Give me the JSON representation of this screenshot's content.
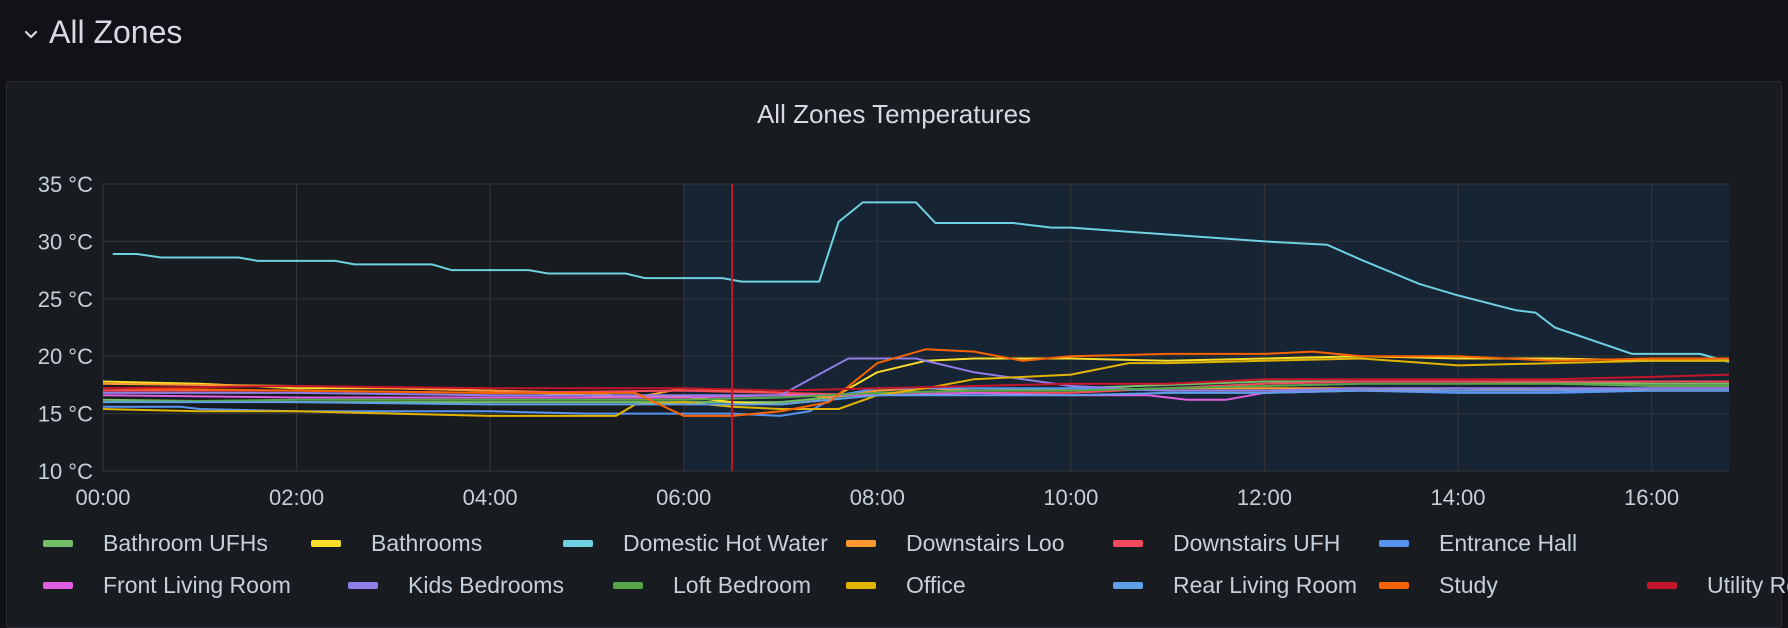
{
  "row": {
    "title": "All Zones"
  },
  "panel": {
    "title": "All Zones Temperatures"
  },
  "colors": {
    "background": "#111217",
    "panel": "#181b1f",
    "grid": "#2f3238",
    "highlight_region": "#172433",
    "now_marker": "#c4162a"
  },
  "chart_data": {
    "type": "line",
    "title": "All Zones Temperatures",
    "xlabel": "",
    "ylabel": "",
    "x_ticks": [
      "00:00",
      "02:00",
      "04:00",
      "06:00",
      "08:00",
      "10:00",
      "12:00",
      "14:00",
      "16:00"
    ],
    "y_ticks": [
      "10 °C",
      "15 °C",
      "20 °C",
      "25 °C",
      "30 °C",
      "35 °C"
    ],
    "xlim_hours": [
      0,
      16.8
    ],
    "ylim": [
      10,
      35
    ],
    "grid": true,
    "legend_position": "bottom",
    "highlight_region_hours": [
      6.0,
      16.8
    ],
    "marker_hour": 6.5,
    "series": [
      {
        "name": "Bathroom UFHs",
        "color": "#73bf69",
        "x": [
          0,
          2,
          4,
          6,
          7,
          8,
          9,
          10,
          12,
          14,
          16,
          16.8
        ],
        "y": [
          16.2,
          16.0,
          16.0,
          16.0,
          16.0,
          16.8,
          17.0,
          17.2,
          17.8,
          17.8,
          17.6,
          17.6
        ]
      },
      {
        "name": "Bathrooms",
        "color": "#fade2a",
        "x": [
          0,
          1,
          2,
          3,
          4,
          5,
          5.6,
          6,
          6.5,
          7,
          7.5,
          8,
          8.5,
          9,
          10,
          11,
          12,
          13,
          14,
          15,
          16,
          16.8
        ],
        "y": [
          17.8,
          17.6,
          17.2,
          17.2,
          17.0,
          16.6,
          16.5,
          16.5,
          16.0,
          15.8,
          16.2,
          18.6,
          19.6,
          19.8,
          19.8,
          19.6,
          19.8,
          20.0,
          19.8,
          19.8,
          19.6,
          19.6
        ]
      },
      {
        "name": "Domestic Hot Water",
        "color": "#6ed0e0",
        "x": [
          0.1,
          0.35,
          0.6,
          1.4,
          1.6,
          2.4,
          2.6,
          3.4,
          3.6,
          4.4,
          4.6,
          5.4,
          5.6,
          6.4,
          6.6,
          7.2,
          7.4,
          7.6,
          7.85,
          8.1,
          8.4,
          8.6,
          9.4,
          9.8,
          10.0,
          11.0,
          12.0,
          12.65,
          13.0,
          13.6,
          14.0,
          14.6,
          14.8,
          15.0,
          15.8,
          16.0,
          16.5,
          16.8
        ],
        "y": [
          28.9,
          28.9,
          28.6,
          28.6,
          28.3,
          28.3,
          28.0,
          28.0,
          27.5,
          27.5,
          27.2,
          27.2,
          26.8,
          26.8,
          26.5,
          26.5,
          26.5,
          31.7,
          33.4,
          33.4,
          33.4,
          31.6,
          31.6,
          31.2,
          31.2,
          30.6,
          30.0,
          29.7,
          28.4,
          26.3,
          25.3,
          24.0,
          23.8,
          22.5,
          20.2,
          20.2,
          20.2,
          19.5
        ]
      },
      {
        "name": "Downstairs Loo",
        "color": "#ff9830",
        "x": [
          0,
          2,
          4,
          5,
          5.5,
          6,
          7,
          7.5,
          8,
          8.5,
          9,
          10,
          11,
          12,
          13,
          14,
          15,
          16,
          16.8
        ],
        "y": [
          17.6,
          17.4,
          17.0,
          16.8,
          16.4,
          17.2,
          16.8,
          16.4,
          17.0,
          17.2,
          17.0,
          17.0,
          17.2,
          17.2,
          17.2,
          17.0,
          17.2,
          17.0,
          17.0
        ]
      },
      {
        "name": "Downstairs UFH",
        "color": "#f2495c",
        "x": [
          0,
          2,
          4,
          6,
          7,
          8,
          9,
          10,
          11,
          12,
          13,
          14,
          15,
          16,
          16.8
        ],
        "y": [
          17.0,
          17.0,
          16.8,
          17.0,
          16.8,
          16.6,
          16.8,
          16.8,
          17.2,
          17.6,
          17.8,
          17.8,
          17.8,
          17.8,
          17.8
        ]
      },
      {
        "name": "Entrance Hall",
        "color": "#5794f2",
        "x": [
          0,
          0.8,
          1,
          2,
          3,
          4,
          5,
          5.6,
          6,
          6.5,
          7,
          7.3,
          7.6,
          8,
          9,
          10,
          11,
          12,
          13,
          14,
          15,
          16,
          16.8
        ],
        "y": [
          15.6,
          15.6,
          15.4,
          15.2,
          15.2,
          15.2,
          15.0,
          15.0,
          15.0,
          15.0,
          14.8,
          15.2,
          16.6,
          17.2,
          17.2,
          17.2,
          17.0,
          17.0,
          17.0,
          16.8,
          16.8,
          17.0,
          17.0
        ]
      },
      {
        "name": "Front Living Room",
        "color": "#e05ee0",
        "x": [
          0,
          2,
          4,
          6,
          7,
          8,
          9,
          10,
          10.8,
          11.2,
          11.6,
          12,
          13,
          14,
          15,
          16,
          16.8
        ],
        "y": [
          16.6,
          16.4,
          16.4,
          16.4,
          16.6,
          16.6,
          16.8,
          16.6,
          16.6,
          16.2,
          16.2,
          16.8,
          17.0,
          17.0,
          17.0,
          17.2,
          17.2
        ]
      },
      {
        "name": "Kids Bedrooms",
        "color": "#8f7ee5",
        "x": [
          0,
          2,
          4,
          6,
          7,
          7.7,
          7.9,
          8.4,
          8.6,
          9,
          10,
          11,
          12,
          13,
          14,
          15,
          16,
          16.8
        ],
        "y": [
          16.8,
          16.8,
          16.6,
          16.6,
          16.6,
          19.8,
          19.8,
          19.8,
          19.4,
          18.6,
          17.4,
          17.0,
          17.0,
          17.2,
          17.2,
          17.2,
          17.2,
          17.2
        ]
      },
      {
        "name": "Loft Bedroom",
        "color": "#56a64b",
        "x": [
          0,
          2,
          4,
          6,
          7,
          8,
          9,
          10,
          11,
          12,
          13,
          14,
          15,
          16,
          16.8
        ],
        "y": [
          16.0,
          16.2,
          16.2,
          16.2,
          16.4,
          16.8,
          17.0,
          17.0,
          17.2,
          17.4,
          17.6,
          17.6,
          17.6,
          17.4,
          17.4
        ]
      },
      {
        "name": "Office",
        "color": "#e0b400",
        "x": [
          0,
          1,
          2,
          3,
          4,
          5,
          5.3,
          5.5,
          6,
          6.5,
          7,
          7.6,
          8,
          8.5,
          9,
          10,
          10.6,
          11,
          12,
          13,
          14,
          15,
          16,
          16.8
        ],
        "y": [
          15.4,
          15.2,
          15.2,
          15.0,
          14.8,
          14.8,
          14.8,
          15.8,
          16.0,
          15.6,
          15.4,
          15.4,
          16.6,
          17.2,
          18.0,
          18.4,
          19.4,
          19.4,
          19.6,
          19.8,
          19.2,
          19.4,
          19.6,
          19.6
        ]
      },
      {
        "name": "Rear Living Room",
        "color": "#5f9fe8",
        "x": [
          0,
          2,
          4,
          6,
          7,
          8,
          9,
          10,
          11,
          12,
          13,
          14,
          15,
          16,
          16.8
        ],
        "y": [
          16.0,
          16.0,
          15.8,
          15.8,
          15.8,
          16.6,
          16.6,
          16.6,
          16.8,
          16.8,
          17.0,
          17.0,
          17.0,
          17.0,
          17.0
        ]
      },
      {
        "name": "Study",
        "color": "#fa6400",
        "x": [
          0,
          2,
          4,
          5.5,
          6,
          6.5,
          7,
          7.5,
          8,
          8.5,
          9,
          9.5,
          10,
          11,
          12,
          12.5,
          13,
          14,
          15,
          16,
          16.8
        ],
        "y": [
          17.2,
          17.0,
          16.8,
          16.8,
          14.8,
          14.8,
          15.2,
          16.0,
          19.4,
          20.6,
          20.4,
          19.6,
          20.0,
          20.2,
          20.2,
          20.4,
          20.0,
          20.0,
          19.6,
          19.8,
          19.8
        ]
      },
      {
        "name": "Utility Room",
        "color": "#c4162a",
        "x": [
          0,
          2,
          4,
          6,
          7,
          8,
          9,
          10,
          11,
          12,
          13,
          14,
          15,
          16,
          16.8
        ],
        "y": [
          17.2,
          17.4,
          17.2,
          17.2,
          17.0,
          17.2,
          17.4,
          17.6,
          17.6,
          18.0,
          18.0,
          18.0,
          18.0,
          18.2,
          18.4
        ]
      }
    ]
  }
}
